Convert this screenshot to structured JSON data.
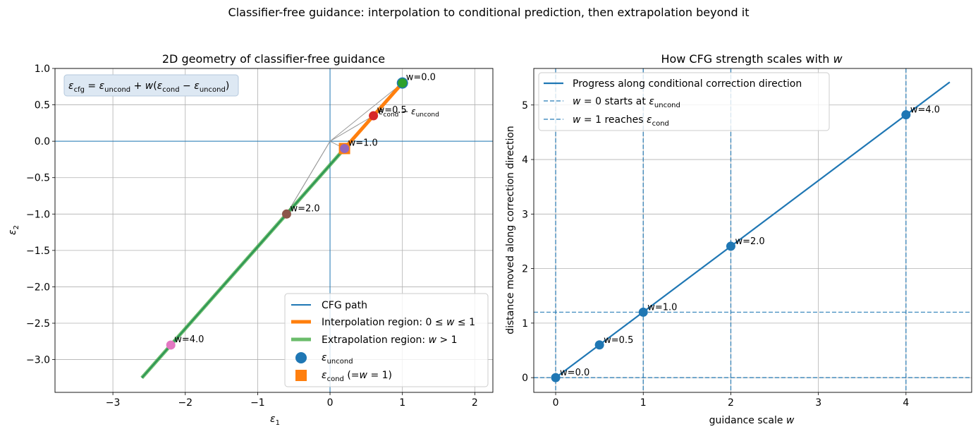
{
  "suptitle": "Classifier-free guidance: interpolation to conditional prediction, then extrapolation beyond it",
  "colors": {
    "tab_blue": "#1f77b4",
    "tab_orange": "#ff7f0e",
    "tab_green": "#2ca02c",
    "tab_red": "#d62728",
    "tab_purple": "#9467bd",
    "tab_brown": "#8c564b",
    "tab_pink": "#e377c2",
    "grid": "#b0b0b0",
    "connector": "#999999"
  },
  "chart_data": [
    {
      "type": "line",
      "title": "2D geometry of classifier-free guidance",
      "xlabel": "ε1",
      "ylabel": "ε2",
      "xlim": [
        -3.8,
        2.25
      ],
      "ylim": [
        -3.45,
        1.0
      ],
      "xticks": [
        -3,
        -2,
        -1,
        0,
        1,
        2
      ],
      "yticks": [
        -3.0,
        -2.5,
        -2.0,
        -1.5,
        -1.0,
        -0.5,
        0.0,
        0.5,
        1.0
      ],
      "xtick_labels": [
        "−3",
        "−2",
        "−1",
        "0",
        "1",
        "2"
      ],
      "ytick_labels": [
        "−3.0",
        "−2.5",
        "−2.0",
        "−1.5",
        "−1.0",
        "−0.5",
        "0.0",
        "0.5",
        "1.0"
      ],
      "grid": true,
      "formula": "εcfg = εuncond + w(εcond − εuncond)",
      "cfg_path": {
        "name": "CFG path",
        "x": [
          1.0,
          -2.6
        ],
        "y": [
          0.8,
          -3.25
        ]
      },
      "interpolation": {
        "name": "Interpolation region: 0 ≤ w ≤ 1",
        "x": [
          1.0,
          0.2
        ],
        "y": [
          0.8,
          -0.1
        ]
      },
      "extrapolation": {
        "name": "Extrapolation region: w > 1",
        "x": [
          0.2,
          -2.6
        ],
        "y": [
          -0.1,
          -3.25
        ]
      },
      "uncond_point": {
        "name": "εuncond",
        "x": 1.0,
        "y": 0.8
      },
      "cond_point": {
        "name": "εcond (=w = 1)",
        "x": 0.2,
        "y": -0.1
      },
      "direction_label": "εcond − εuncond",
      "w_points": [
        {
          "label": "w=0.0",
          "x": 1.0,
          "y": 0.8,
          "color": "#2ca02c"
        },
        {
          "label": "w=0.5",
          "x": 0.6,
          "y": 0.35,
          "color": "#d62728"
        },
        {
          "label": "w=1.0",
          "x": 0.2,
          "y": -0.1,
          "color": "#9467bd"
        },
        {
          "label": "w=2.0",
          "x": -0.6,
          "y": -1.0,
          "color": "#8c564b"
        },
        {
          "label": "w=4.0",
          "x": -2.2,
          "y": -2.8,
          "color": "#e377c2"
        }
      ],
      "legend": {
        "placement": "lower-right",
        "entries": [
          "CFG path",
          "Interpolation region: 0 ≤ w ≤ 1",
          "Extrapolation region: w > 1",
          "εuncond",
          "εcond (=w = 1)"
        ]
      }
    },
    {
      "type": "line",
      "title": "How CFG strength scales with w",
      "xlabel": "guidance scale w",
      "ylabel": "distance moved along correction direction",
      "xlim": [
        -0.25,
        4.75
      ],
      "ylim": [
        -0.27,
        5.67
      ],
      "xticks": [
        0,
        1,
        2,
        3,
        4
      ],
      "yticks": [
        0,
        1,
        2,
        3,
        4,
        5
      ],
      "grid": true,
      "series": [
        {
          "name": "Progress along conditional correction direction",
          "x": [
            0,
            4.5
          ],
          "y": [
            0,
            5.42
          ]
        }
      ],
      "points": [
        {
          "label": "w=0.0",
          "x": 0,
          "y": 0
        },
        {
          "label": "w=0.5",
          "x": 0.5,
          "y": 0.6
        },
        {
          "label": "w=1.0",
          "x": 1,
          "y": 1.2
        },
        {
          "label": "w=2.0",
          "x": 2,
          "y": 2.41
        },
        {
          "label": "w=4.0",
          "x": 4,
          "y": 4.82
        }
      ],
      "vlines": [
        0,
        1,
        2,
        4
      ],
      "hlines": [
        0,
        1.2
      ],
      "legend": {
        "placement": "upper-left",
        "entries": [
          "Progress along conditional correction direction",
          "w = 0 starts at εuncond",
          "w = 1 reaches εcond"
        ]
      }
    }
  ]
}
